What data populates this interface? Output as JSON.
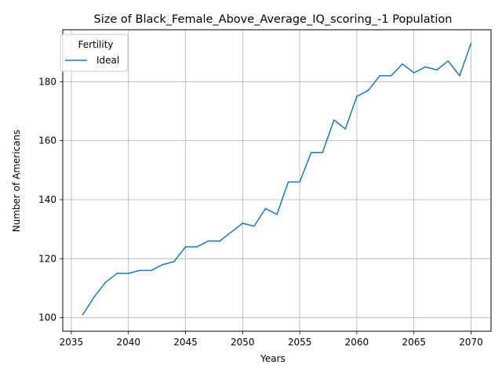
{
  "chart_data": {
    "type": "line",
    "title": "Size of Black_Female_Above_Average_IQ_scoring_-1 Population",
    "xlabel": "Years",
    "ylabel": "Number of Americans",
    "xlim": [
      2034.25,
      2071.75
    ],
    "ylim": [
      95.4,
      197.6
    ],
    "xticks": [
      2035,
      2040,
      2045,
      2050,
      2055,
      2060,
      2065,
      2070
    ],
    "yticks": [
      100,
      120,
      140,
      160,
      180
    ],
    "grid": true,
    "legend": {
      "title": "Fertility",
      "placement": "top-left"
    },
    "series": [
      {
        "name": "Ideal",
        "color": "#1f77b4",
        "x": [
          2036,
          2037,
          2038,
          2039,
          2040,
          2041,
          2042,
          2043,
          2044,
          2045,
          2046,
          2047,
          2048,
          2049,
          2050,
          2051,
          2052,
          2053,
          2054,
          2055,
          2056,
          2057,
          2058,
          2059,
          2060,
          2061,
          2062,
          2063,
          2064,
          2065,
          2066,
          2067,
          2068,
          2069,
          2070
        ],
        "values": [
          101,
          107,
          112,
          115,
          115,
          116,
          116,
          118,
          119,
          124,
          124,
          126,
          126,
          129,
          132,
          131,
          137,
          135,
          146,
          146,
          156,
          156,
          167,
          164,
          175,
          177,
          182,
          182,
          186,
          183,
          185,
          184,
          187,
          182,
          193
        ]
      }
    ]
  }
}
